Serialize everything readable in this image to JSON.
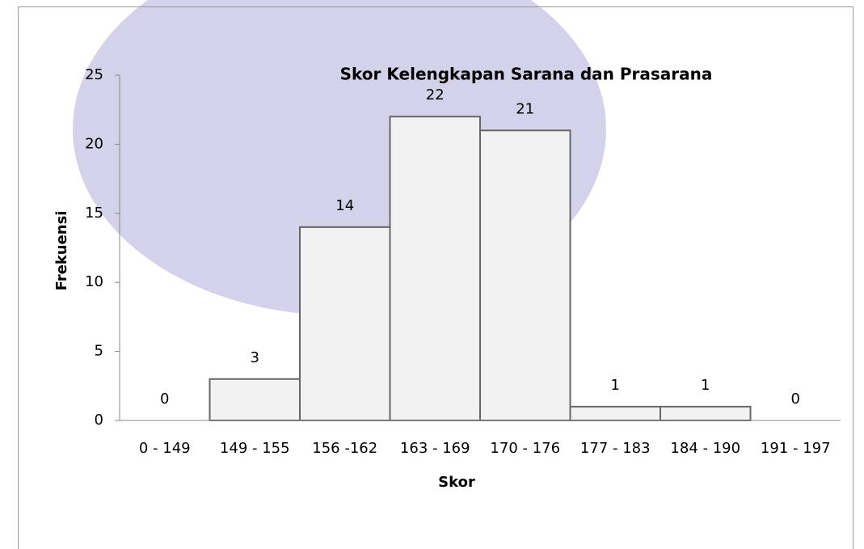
{
  "chart_data": {
    "type": "bar",
    "title": "Skor Kelengkapan Sarana dan Prasarana",
    "x_label": "Skor",
    "y_label": "Frekuensi",
    "categories": [
      "0 - 149",
      "149 - 155",
      "156 -162",
      "163 - 169",
      "170 - 176",
      "177 - 183",
      "184 - 190",
      "191 - 197"
    ],
    "values": [
      0,
      3,
      14,
      22,
      21,
      1,
      1,
      0
    ],
    "color": "#f2f2f2",
    "ylim": [
      0,
      25
    ],
    "yticks": [
      0,
      5,
      10,
      15,
      20,
      25
    ],
    "grid": false
  }
}
